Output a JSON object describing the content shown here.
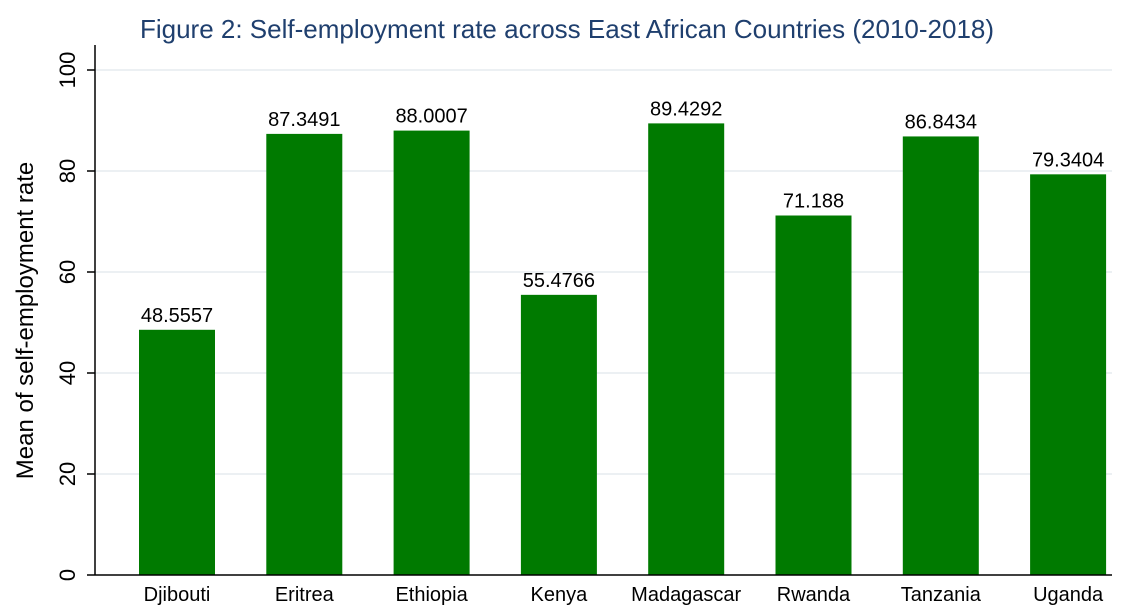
{
  "chart_data": {
    "type": "bar",
    "title": "Figure 2: Self-employment rate across East African Countries (2010-2018)",
    "xlabel": "",
    "ylabel": "Mean of self-employment rate",
    "categories": [
      "Djibouti",
      "Eritrea",
      "Ethiopia",
      "Kenya",
      "Madagascar",
      "Rwanda",
      "Tanzania",
      "Uganda"
    ],
    "values": [
      48.5557,
      87.3491,
      88.0007,
      55.4766,
      89.4292,
      71.188,
      86.8434,
      79.3404
    ],
    "value_labels": [
      "48.5557",
      "87.3491",
      "88.0007",
      "55.4766",
      "89.4292",
      "71.188",
      "86.8434",
      "79.3404"
    ],
    "ylim": [
      0,
      100
    ],
    "yticks": [
      0,
      20,
      40,
      60,
      80,
      100
    ],
    "ytick_labels": [
      "0",
      "20",
      "40",
      "60",
      "80",
      "100"
    ],
    "grid": true,
    "legend": "none",
    "colors": {
      "bar": "#007a00",
      "title": "#1f3f6e",
      "grid": "#e6ebef",
      "axis": "#000000"
    }
  }
}
